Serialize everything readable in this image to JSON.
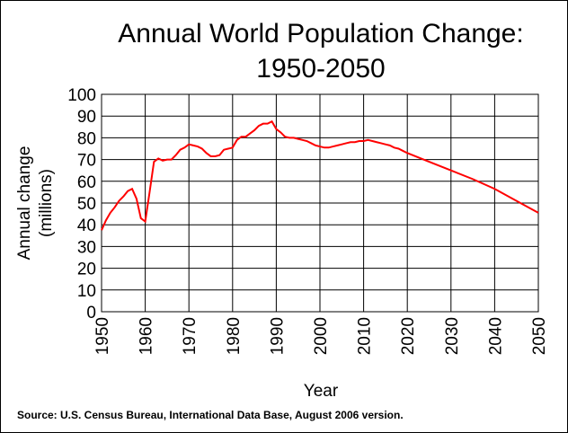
{
  "chart_data": {
    "type": "line",
    "title_line1": "Annual World Population Change:",
    "title_line2": "1950-2050",
    "xlabel": "Year",
    "ylabel_line1": "Annual change",
    "ylabel_line2": "(millions)",
    "source": "Source: U.S. Census Bureau, International Data Base, August 2006 version.",
    "xlim": [
      1950,
      2050
    ],
    "ylim": [
      0,
      100
    ],
    "x_ticks": [
      1950,
      1960,
      1970,
      1980,
      1990,
      2000,
      2010,
      2020,
      2030,
      2040,
      2050
    ],
    "y_ticks": [
      0,
      10,
      20,
      30,
      40,
      50,
      60,
      70,
      80,
      90,
      100
    ],
    "x_tick_labels": [
      "1950",
      "1960",
      "1970",
      "1980",
      "1990",
      "2000",
      "2010",
      "2020",
      "2030",
      "2040",
      "2050"
    ],
    "y_tick_labels": [
      "0",
      "10",
      "20",
      "30",
      "40",
      "50",
      "60",
      "70",
      "80",
      "90",
      "100"
    ],
    "grid": true,
    "line_color": "#ff0000",
    "series": [
      {
        "x": [
          1950,
          1951,
          1952,
          1953,
          1954,
          1955,
          1956,
          1957,
          1958,
          1959,
          1960,
          1961,
          1962,
          1963,
          1964,
          1965,
          1966,
          1967,
          1968,
          1969,
          1970,
          1971,
          1972,
          1973,
          1974,
          1975,
          1976,
          1977,
          1978,
          1979,
          1980,
          1981,
          1982,
          1983,
          1984,
          1985,
          1986,
          1987,
          1988,
          1989,
          1990,
          1991,
          1992,
          1993,
          1994,
          1995,
          1996,
          1997,
          1998,
          1999,
          2000,
          2001,
          2002,
          2003,
          2004,
          2005,
          2006,
          2007,
          2008,
          2009,
          2010,
          2011,
          2012,
          2013,
          2014,
          2015,
          2016,
          2017,
          2018,
          2019,
          2020,
          2025,
          2030,
          2035,
          2040,
          2045,
          2050
        ],
        "values": [
          37.5,
          42,
          45.5,
          48,
          51,
          53,
          55.5,
          56.5,
          52,
          43,
          41.5,
          55,
          69,
          70.5,
          69.5,
          70,
          70,
          72,
          74.5,
          75.5,
          77,
          76.5,
          76,
          75,
          73,
          71.5,
          71.5,
          72,
          74.5,
          75,
          75.5,
          79,
          80.5,
          80.5,
          82,
          83.5,
          85.5,
          86.5,
          86.5,
          87.5,
          84,
          82.5,
          80.5,
          80,
          80,
          79.5,
          79,
          78.5,
          77.5,
          76.5,
          76,
          75.5,
          75.5,
          76,
          76.5,
          77,
          77.5,
          78,
          78,
          78.5,
          78.5,
          79,
          78.5,
          78,
          77.5,
          77,
          76.5,
          75.5,
          75,
          74,
          73,
          69,
          65,
          61,
          56.5,
          51,
          45.5
        ]
      }
    ]
  }
}
